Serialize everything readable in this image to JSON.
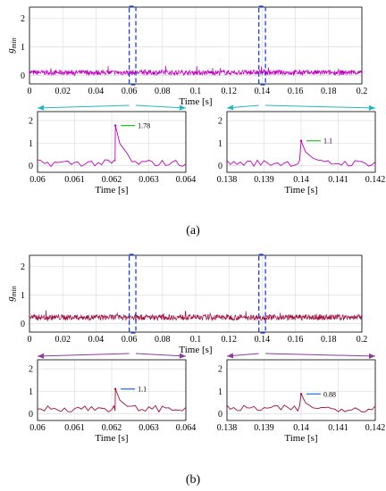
{
  "figure": {
    "panels": [
      {
        "label": "(a)",
        "series_color": "#c000c0",
        "annotation_color": "#22c022",
        "zoom_arrow_color": "#22b8c0",
        "window_color": "#1f3fdc",
        "overview": {
          "ylabel": "g_min",
          "xlabel": "Time [s]",
          "xlim": [
            0,
            0.2
          ],
          "ylim": [
            -0.3,
            2.4
          ],
          "xticks": [
            "0",
            "0.02",
            "0.04",
            "0.06",
            "0.08",
            "0.1",
            "0.12",
            "0.14",
            "0.16",
            "0.18",
            "0.2"
          ],
          "yticks": [
            "0",
            "1",
            "2"
          ],
          "baseline": 0.1,
          "noise": 0.09,
          "windows": [
            [
              0.06,
              0.064
            ],
            [
              0.138,
              0.142
            ]
          ]
        },
        "zooms": [
          {
            "xlabel": "Time [s]",
            "xlim": [
              0.06,
              0.064
            ],
            "ylim": [
              -0.3,
              2.4
            ],
            "xticks": [
              "0.06",
              "0.061",
              "0.062",
              "0.063",
              "0.064"
            ],
            "yticks": [
              "0",
              "1",
              "2"
            ],
            "peak_x": 0.0621,
            "peak_value": 1.78,
            "peak_label": "1.78"
          },
          {
            "xlabel": "Time [s]",
            "xlim": [
              0.138,
              0.142
            ],
            "ylim": [
              -0.3,
              2.4
            ],
            "xticks": [
              "0.138",
              "0.139",
              "0.14",
              "0.141",
              "0.142"
            ],
            "yticks": [
              "0",
              "1",
              "2"
            ],
            "peak_x": 0.14,
            "peak_value": 1.1,
            "peak_label": "1.1"
          }
        ]
      },
      {
        "label": "(b)",
        "series_color": "#a0103a",
        "annotation_color": "#1f6fd0",
        "zoom_arrow_color": "#8a3aa0",
        "window_color": "#1f3fdc",
        "overview": {
          "ylabel": "g_min",
          "xlabel": "Time [s]",
          "xlim": [
            0,
            0.2
          ],
          "ylim": [
            -0.3,
            2.4
          ],
          "xticks": [
            "0",
            "0.02",
            "0.04",
            "0.06",
            "0.08",
            "0.1",
            "0.12",
            "0.14",
            "0.16",
            "0.18",
            "0.2"
          ],
          "yticks": [
            "0",
            "1",
            "2"
          ],
          "baseline": 0.22,
          "noise": 0.1,
          "windows": [
            [
              0.06,
              0.064
            ],
            [
              0.138,
              0.142
            ]
          ]
        },
        "zooms": [
          {
            "xlabel": "Time [s]",
            "xlim": [
              0.06,
              0.064
            ],
            "ylim": [
              -0.3,
              2.4
            ],
            "xticks": [
              "0.06",
              "0.061",
              "0.062",
              "0.063",
              "0.064"
            ],
            "yticks": [
              "0",
              "1",
              "2"
            ],
            "peak_x": 0.0621,
            "peak_value": 1.1,
            "peak_label": "1.1"
          },
          {
            "xlabel": "Time [s]",
            "xlim": [
              0.138,
              0.142
            ],
            "ylim": [
              -0.3,
              2.4
            ],
            "xticks": [
              "0.138",
              "0.139",
              "0.14",
              "0.141",
              "0.142"
            ],
            "yticks": [
              "0",
              "1",
              "2"
            ],
            "peak_x": 0.14,
            "peak_value": 0.88,
            "peak_label": "0.88"
          }
        ]
      }
    ]
  },
  "chart_data": [
    {
      "type": "line",
      "title": "",
      "xlabel": "Time [s]",
      "ylabel": "g_min",
      "xlim": [
        0,
        0.2
      ],
      "ylim": [
        -0.3,
        2.4
      ],
      "note": "noisy signal around 0.1 with highlighted windows at 0.06–0.064 s and 0.138–0.142 s",
      "series": [
        {
          "values_summary_baseline": 0.1
        }
      ]
    },
    {
      "type": "line",
      "xlabel": "Time [s]",
      "xlim": [
        0.06,
        0.064
      ],
      "ylim": [
        -0.3,
        2.4
      ],
      "series": [
        {
          "x": [
            0.06,
            0.0612,
            0.0621,
            0.0625,
            0.064
          ],
          "values": [
            0.1,
            0.2,
            1.78,
            0.5,
            0.05
          ]
        }
      ],
      "annotations": [
        {
          "x": 0.0621,
          "y": 1.78,
          "text": "1.78"
        }
      ]
    },
    {
      "type": "line",
      "xlabel": "Time [s]",
      "xlim": [
        0.138,
        0.142
      ],
      "ylim": [
        -0.3,
        2.4
      ],
      "series": [
        {
          "x": [
            0.138,
            0.1395,
            0.14,
            0.1405,
            0.142
          ],
          "values": [
            0.1,
            0.3,
            1.1,
            0.3,
            0.05
          ]
        }
      ],
      "annotations": [
        {
          "x": 0.14,
          "y": 1.1,
          "text": "1.1"
        }
      ]
    },
    {
      "type": "line",
      "xlabel": "Time [s]",
      "ylabel": "g_min",
      "xlim": [
        0,
        0.2
      ],
      "ylim": [
        -0.3,
        2.4
      ],
      "series": [
        {
          "values_summary_baseline": 0.22
        }
      ]
    },
    {
      "type": "line",
      "xlabel": "Time [s]",
      "xlim": [
        0.06,
        0.064
      ],
      "ylim": [
        -0.3,
        2.4
      ],
      "series": [
        {
          "x": [
            0.06,
            0.0612,
            0.0621,
            0.0625,
            0.064
          ],
          "values": [
            0.2,
            0.35,
            1.1,
            0.45,
            0.2
          ]
        }
      ],
      "annotations": [
        {
          "x": 0.0621,
          "y": 1.1,
          "text": "1.1"
        }
      ]
    },
    {
      "type": "line",
      "xlabel": "Time [s]",
      "xlim": [
        0.138,
        0.142
      ],
      "ylim": [
        -0.3,
        2.4
      ],
      "series": [
        {
          "x": [
            0.138,
            0.1395,
            0.14,
            0.1405,
            0.142
          ],
          "values": [
            0.2,
            0.25,
            0.88,
            0.2,
            0.22
          ]
        }
      ],
      "annotations": [
        {
          "x": 0.14,
          "y": 0.88,
          "text": "0.88"
        }
      ]
    }
  ]
}
